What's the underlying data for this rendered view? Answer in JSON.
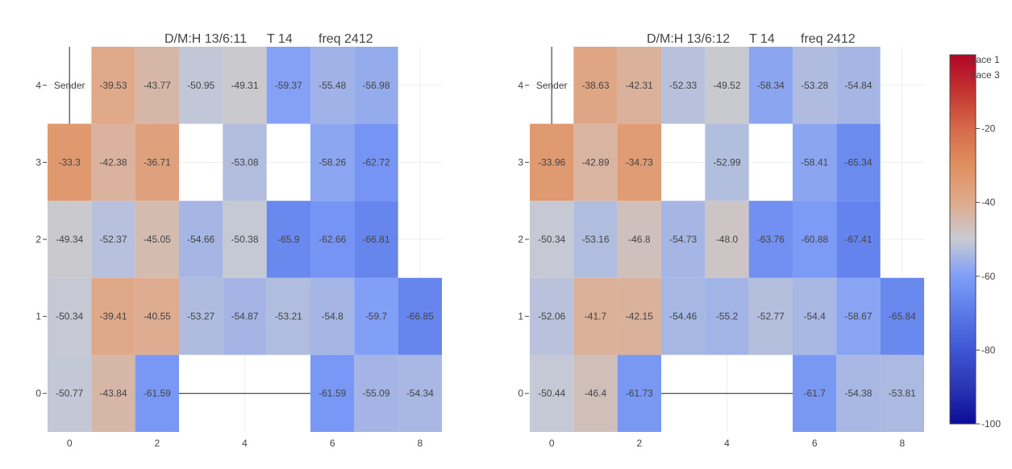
{
  "chart_data": [
    {
      "type": "heatmap",
      "title_parts": [
        "D/M:H 13/6:11",
        "T 14",
        "freq 2412"
      ],
      "x_ticks": [
        "0",
        "2",
        "4",
        "6",
        "8"
      ],
      "y_ticks": [
        "0",
        "1",
        "2",
        "3",
        "4"
      ],
      "x": [
        0,
        1,
        2,
        3,
        4,
        5,
        6,
        7,
        8
      ],
      "y": [
        0,
        1,
        2,
        3,
        4
      ],
      "z": [
        [
          -50.77,
          -43.84,
          -61.59,
          null,
          null,
          null,
          -61.59,
          -55.09,
          -54.34
        ],
        [
          -50.34,
          -39.41,
          -40.55,
          -53.27,
          -54.87,
          -53.21,
          -54.8,
          -59.7,
          -66.85
        ],
        [
          -49.34,
          -52.37,
          -45.05,
          -54.66,
          -50.38,
          -65.9,
          -62.66,
          -66.81,
          null
        ],
        [
          -33.3,
          -42.38,
          -36.71,
          null,
          -53.08,
          null,
          -58.26,
          -62.72,
          null
        ],
        [
          null,
          -39.53,
          -43.77,
          -50.95,
          -49.31,
          -59.37,
          -55.48,
          -56.98,
          null
        ]
      ],
      "text_labels": [
        [
          "-50.77",
          "-43.84",
          "-61.59",
          "",
          "",
          "",
          "-61.59",
          "-55.09",
          "-54.34"
        ],
        [
          "-50.34",
          "-39.41",
          "-40.55",
          "-53.27",
          "-54.87",
          "-53.21",
          "-54.8",
          "-59.7",
          "-66.85"
        ],
        [
          "-49.34",
          "-52.37",
          "-45.05",
          "-54.66",
          "-50.38",
          "-65.9",
          "-62.66",
          "-66.81",
          ""
        ],
        [
          "-33.3",
          "-42.38",
          "-36.71",
          "",
          "-53.08",
          "",
          "-58.26",
          "-62.72",
          ""
        ],
        [
          "Sender",
          "-39.53",
          "-43.77",
          "-50.95",
          "-49.31",
          "-59.37",
          "-55.48",
          "-56.98",
          ""
        ]
      ],
      "sender_line_x": [
        0,
        0
      ],
      "sender_line_y": [
        3.5,
        4.5
      ],
      "base_line_x": [
        2.5,
        5.5
      ],
      "base_line_y": [
        0,
        0
      ],
      "xlim": [
        -0.5,
        8.5
      ],
      "ylim": [
        -0.5,
        4.5
      ]
    },
    {
      "type": "heatmap",
      "title_parts": [
        "D/M:H 13/6:12",
        "T 14",
        "freq 2412"
      ],
      "x_ticks": [
        "0",
        "2",
        "4",
        "6",
        "8"
      ],
      "y_ticks": [
        "0",
        "1",
        "2",
        "3",
        "4"
      ],
      "x": [
        0,
        1,
        2,
        3,
        4,
        5,
        6,
        7,
        8
      ],
      "y": [
        0,
        1,
        2,
        3,
        4
      ],
      "z": [
        [
          -50.44,
          -46.4,
          -61.73,
          null,
          null,
          null,
          -61.7,
          -54.38,
          -53.81
        ],
        [
          -52.06,
          -41.7,
          -42.15,
          -54.46,
          -55.2,
          -52.77,
          -54.4,
          -58.67,
          -65.84
        ],
        [
          -50.34,
          -53.16,
          -46.8,
          -54.73,
          -48.0,
          -63.76,
          -60.88,
          -67.41,
          null
        ],
        [
          -33.96,
          -42.89,
          -34.73,
          null,
          -52.99,
          null,
          -58.41,
          -65.34,
          null
        ],
        [
          null,
          -38.63,
          -42.31,
          -52.33,
          -49.52,
          -58.34,
          -53.28,
          -54.84,
          null
        ]
      ],
      "text_labels": [
        [
          "-50.44",
          "-46.4",
          "-61.73",
          "",
          "",
          "",
          "-61.7",
          "-54.38",
          "-53.81"
        ],
        [
          "-52.06",
          "-41.7",
          "-42.15",
          "-54.46",
          "-55.2",
          "-52.77",
          "-54.4",
          "-58.67",
          "-65.84"
        ],
        [
          "-50.34",
          "-53.16",
          "-46.8",
          "-54.73",
          "-48.0",
          "-63.76",
          "-60.88",
          "-67.41",
          ""
        ],
        [
          "-33.96",
          "-42.89",
          "-34.73",
          "",
          "-52.99",
          "",
          "-58.41",
          "-65.34",
          ""
        ],
        [
          "Sender",
          "-38.63",
          "-42.31",
          "-52.33",
          "-49.52",
          "-58.34",
          "-53.28",
          "-54.84",
          ""
        ]
      ],
      "sender_line_x": [
        0,
        0
      ],
      "sender_line_y": [
        3.5,
        4.5
      ],
      "base_line_x": [
        2.5,
        5.5
      ],
      "base_line_y": [
        0,
        0
      ],
      "xlim": [
        -0.5,
        8.5
      ],
      "ylim": [
        -0.5,
        4.5
      ]
    }
  ],
  "colorbar": {
    "colorscale": "coolwarm",
    "zmin": -100,
    "zmax": 0,
    "ticks": [
      "-20",
      "-40",
      "-60",
      "-80",
      "-100"
    ],
    "tick_values": [
      -20,
      -40,
      -60,
      -80,
      -100
    ],
    "colors": [
      "#b40426",
      "#dc5d4a",
      "#f49a7b",
      "#f2cbb7",
      "#dddcdc",
      "#bfd3f6",
      "#9abbff",
      "#7396f5",
      "#4f69d9",
      "#3b4cc0",
      "#0b0b9a"
    ]
  },
  "legend": {
    "items": [
      "trace 1",
      "trace 3"
    ],
    "placement": "top-right"
  }
}
